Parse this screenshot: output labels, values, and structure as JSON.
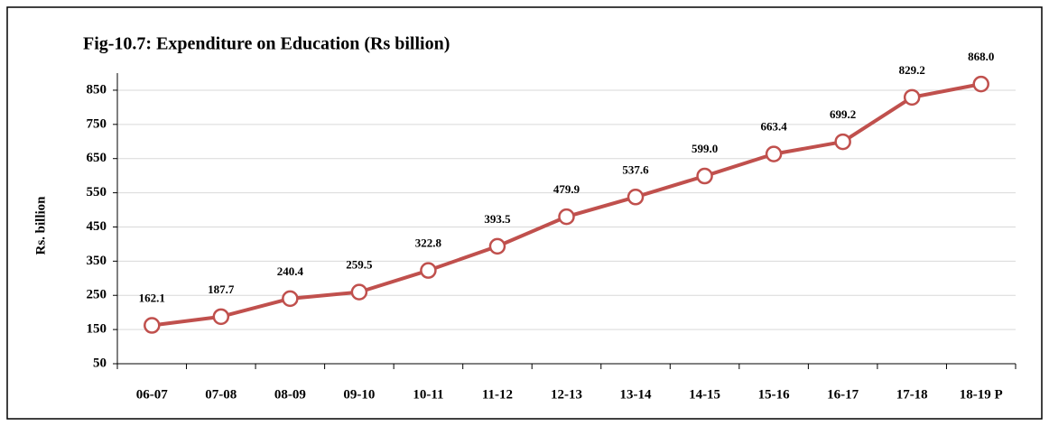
{
  "chart_data": {
    "type": "line",
    "title": "Fig-10.7: Expenditure on Education (Rs billion)",
    "y_label": "Rs. billion",
    "categories": [
      "06-07",
      "07-08",
      "08-09",
      "09-10",
      "10-11",
      "11-12",
      "12-13",
      "13-14",
      "14-15",
      "15-16",
      "16-17",
      "17-18",
      "18-19 P"
    ],
    "series": [
      {
        "name": "Expenditure on Education",
        "color": "#c0504d",
        "values": [
          162.1,
          187.7,
          240.4,
          259.5,
          322.8,
          393.5,
          479.9,
          537.6,
          599.0,
          663.4,
          699.2,
          829.2,
          868.0
        ],
        "value_labels": [
          "162.1",
          "187.7",
          "240.4",
          "259.5",
          "322.8",
          "393.5",
          "479.9",
          "537.6",
          "599.0",
          "663.4",
          "699.2",
          "829.2",
          "868.0"
        ]
      }
    ],
    "ylim": [
      50,
      900
    ],
    "yticks": [
      50,
      150,
      250,
      350,
      450,
      550,
      650,
      750,
      850
    ],
    "grid": true
  }
}
